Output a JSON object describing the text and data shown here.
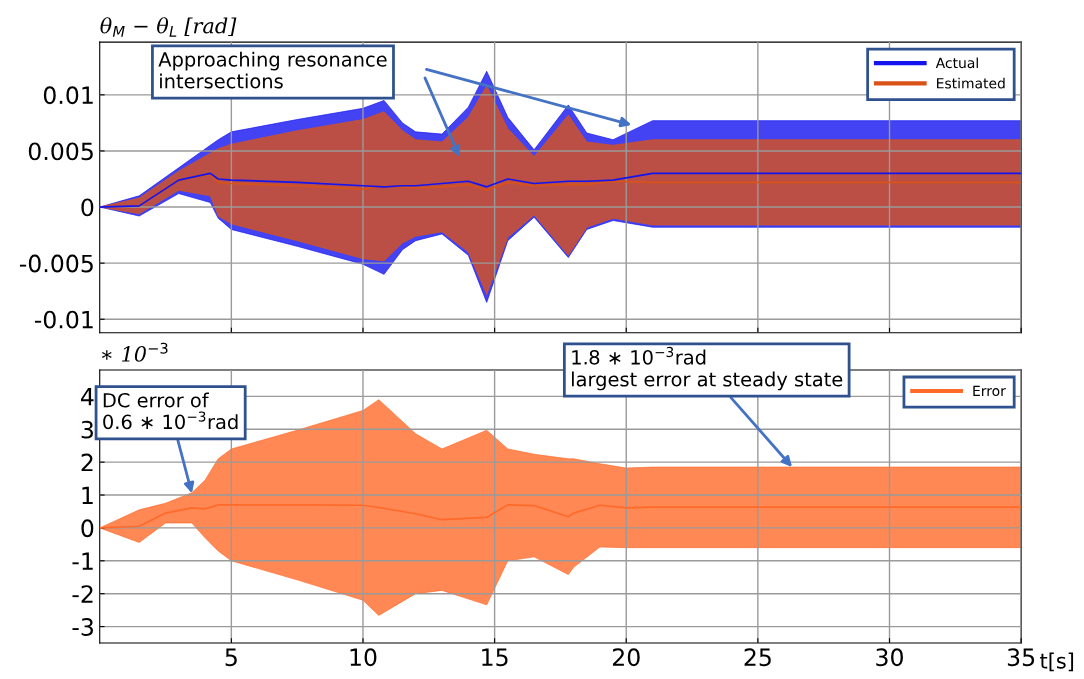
{
  "chart_data": [
    {
      "type": "line",
      "ylabel": "θ$_{M}$ − θ$_{L}$ [rad]",
      "xlim": [
        0,
        35
      ],
      "xticks": [
        5,
        10,
        15,
        20,
        25,
        30,
        35
      ],
      "ylim": [
        -0.0112,
        0.0147
      ],
      "yticks": [
        -0.01,
        -0.005,
        0,
        0.005,
        0.01
      ],
      "tick_labels": "y",
      "grid": true,
      "legend": "top right",
      "annotations": [
        "Approaching resonance\nintersections"
      ],
      "series": [
        {
          "name": "Actual",
          "color": "#1414f0",
          "x": [
            0,
            1.5,
            3,
            4.2,
            4.5,
            5,
            7.5,
            10,
            10.8,
            11.5,
            12,
            13,
            14,
            14.7,
            15.5,
            16.5,
            17.8,
            18.5,
            19.5,
            21,
            25,
            30,
            35
          ],
          "values": [
            0,
            0.0001,
            0.0024,
            0.003,
            0.0025,
            0.0024,
            0.0022,
            0.0019,
            0.0018,
            0.0019,
            0.0019,
            0.0021,
            0.0023,
            0.0018,
            0.0025,
            0.0021,
            0.0023,
            0.0023,
            0.0024,
            0.003,
            0.003,
            0.003,
            0.003
          ],
          "upper": [
            0,
            0.001,
            0.0035,
            0.0055,
            0.006,
            0.0067,
            0.0078,
            0.0088,
            0.0095,
            0.0075,
            0.0067,
            0.0065,
            0.0089,
            0.0121,
            0.008,
            0.0051,
            0.0091,
            0.0066,
            0.006,
            0.0077,
            0.0077,
            0.0077,
            0.0077
          ],
          "lower": [
            0,
            -0.0008,
            0.0012,
            0.0004,
            -0.001,
            -0.002,
            -0.0035,
            -0.0051,
            -0.006,
            -0.0038,
            -0.003,
            -0.0024,
            -0.0043,
            -0.0085,
            -0.003,
            -0.0009,
            -0.0045,
            -0.002,
            -0.0012,
            -0.0018,
            -0.0018,
            -0.0018,
            -0.0018
          ]
        },
        {
          "name": "Estimated",
          "color": "#d95319",
          "x": [
            0,
            1.5,
            3,
            4.2,
            4.5,
            5,
            7.5,
            10,
            10.8,
            11.5,
            12,
            13,
            14,
            14.7,
            15.5,
            16.5,
            17.8,
            18.5,
            19.5,
            21,
            25,
            30,
            35
          ],
          "values": [
            0,
            0.0001,
            0.0024,
            0.0029,
            0.0022,
            0.0021,
            0.0019,
            0.0016,
            0.0019,
            0.0018,
            0.0017,
            0.0018,
            0.002,
            0.0015,
            0.0022,
            0.0019,
            0.002,
            0.002,
            0.0023,
            0.0022,
            0.0022,
            0.0022,
            0.0022
          ],
          "upper": [
            0,
            0.0008,
            0.0032,
            0.0048,
            0.0052,
            0.0056,
            0.0068,
            0.0078,
            0.0085,
            0.0068,
            0.006,
            0.0058,
            0.008,
            0.0108,
            0.007,
            0.0045,
            0.0082,
            0.0058,
            0.0055,
            0.006,
            0.006,
            0.006,
            0.006
          ],
          "lower": [
            0,
            -0.0006,
            0.0015,
            0.001,
            -0.0008,
            -0.0015,
            -0.003,
            -0.0046,
            -0.0048,
            -0.0032,
            -0.0026,
            -0.0022,
            -0.004,
            -0.0078,
            -0.0027,
            -0.0007,
            -0.0043,
            -0.0018,
            -0.001,
            -0.0016,
            -0.0016,
            -0.0016,
            -0.0016
          ]
        }
      ]
    },
    {
      "type": "line",
      "ylabel": "∗ 10$^{−3}$",
      "xlabel": "t[s]",
      "xlim": [
        0,
        35
      ],
      "xticks": [
        5,
        10,
        15,
        20,
        25,
        30,
        35
      ],
      "ylim": [
        -3.5,
        4.8
      ],
      "yticks": [
        -3,
        -2,
        -1,
        0,
        1,
        2,
        3,
        4
      ],
      "grid": true,
      "legend": "top right",
      "annotations": [
        {
          "text": "DC error of\n0.6 ∗ 10$^{−3}$rad",
          "x": 3.5,
          "y": 1.05
        },
        {
          "text": "1.8 ∗ 10$^{−3}$rad\nlargest error at steady state",
          "x": 26.3,
          "y": 1.85
        }
      ],
      "series": [
        {
          "name": "Error",
          "color": "#ff6a2a",
          "x": [
            0,
            1.5,
            2.5,
            3.5,
            4,
            4.5,
            5,
            7.5,
            10,
            10.6,
            12,
            13,
            14.7,
            15.5,
            16.5,
            17.8,
            18,
            19,
            20,
            21,
            25,
            30,
            35
          ],
          "values": [
            0,
            0.05,
            0.45,
            0.61,
            0.58,
            0.7,
            0.7,
            0.7,
            0.69,
            0.62,
            0.43,
            0.25,
            0.32,
            0.7,
            0.68,
            0.34,
            0.45,
            0.69,
            0.61,
            0.63,
            0.63,
            0.63,
            0.63
          ],
          "upper": [
            0,
            0.55,
            0.75,
            1.07,
            1.45,
            2.1,
            2.4,
            2.97,
            3.57,
            3.9,
            2.86,
            2.4,
            2.97,
            2.4,
            2.24,
            2.1,
            2.1,
            1.95,
            1.82,
            1.85,
            1.85,
            1.85,
            1.85
          ],
          "lower": [
            0,
            -0.44,
            0.15,
            0.15,
            -0.3,
            -0.7,
            -1.0,
            -1.58,
            -2.2,
            -2.66,
            -2.0,
            -1.9,
            -2.34,
            -1.0,
            -0.88,
            -1.42,
            -1.2,
            -0.58,
            -0.6,
            -0.6,
            -0.6,
            -0.6,
            -0.6
          ]
        }
      ]
    }
  ]
}
